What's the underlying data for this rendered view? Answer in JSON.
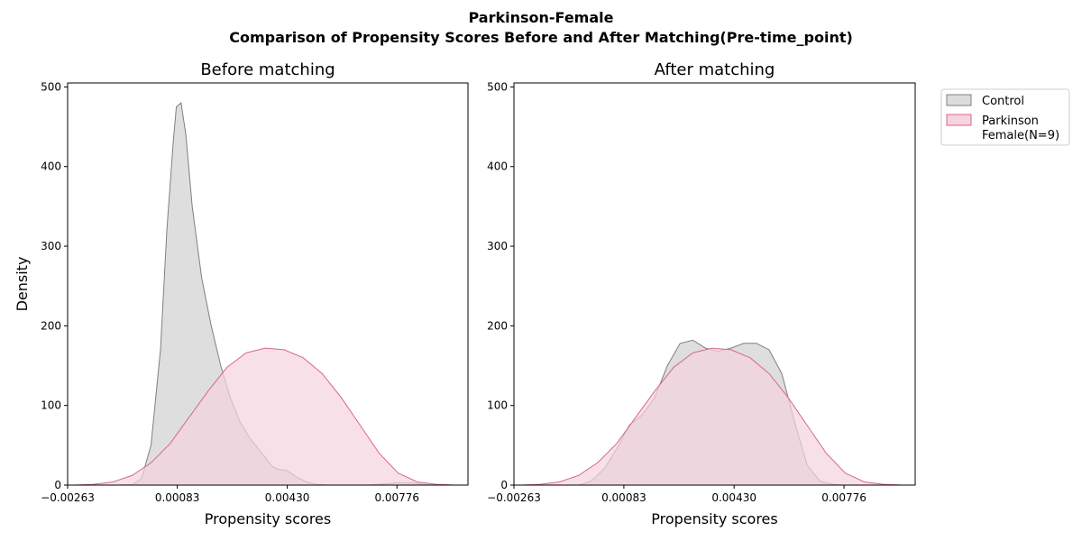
{
  "suptitle": {
    "line1": "Parkinson-Female",
    "line2": "Comparison of Propensity Scores Before and After Matching(Pre-time_point)"
  },
  "legend": {
    "items": [
      {
        "label_lines": [
          "Control"
        ],
        "fill": "#dcdcdc",
        "stroke": "#808080"
      },
      {
        "label_lines": [
          "Parkinson",
          "Female(N=9)"
        ],
        "fill": "#f5d3df",
        "stroke": "#d9668f"
      }
    ],
    "placement": "outside-right"
  },
  "chart_data": [
    {
      "type": "area",
      "title": "Before matching",
      "xlabel": "Propensity scores",
      "ylabel": "Density",
      "xlim": [
        -0.00263,
        0.01
      ],
      "ylim": [
        0,
        505
      ],
      "xticks": [
        -0.00263,
        0.00083,
        0.0043,
        0.00776
      ],
      "xtick_labels": [
        "−0.00263",
        "0.00083",
        "0.00430",
        "0.00776"
      ],
      "yticks": [
        0,
        100,
        200,
        300,
        400,
        500
      ],
      "grid": false,
      "series": [
        {
          "name": "Control",
          "color": "#808080",
          "fill": "#dcdcdc",
          "x": [
            -0.0024,
            -0.0012,
            -0.0006,
            -0.0003,
            0.0,
            0.0003,
            0.0005,
            0.0007,
            0.0008,
            0.00095,
            0.0011,
            0.0013,
            0.0016,
            0.0019,
            0.0022,
            0.0025,
            0.0028,
            0.0031,
            0.0034,
            0.0036,
            0.0038,
            0.004,
            0.0043,
            0.0046,
            0.0049,
            0.0052,
            0.0056,
            0.006,
            0.0064,
            0.0068,
            0.0072,
            0.0078,
            0.0082,
            0.0086,
            0.009,
            0.0095
          ],
          "y": [
            0,
            0,
            0.5,
            8,
            50,
            170,
            320,
            430,
            475,
            480,
            440,
            350,
            260,
            200,
            150,
            110,
            80,
            60,
            45,
            35,
            24,
            20,
            18,
            10,
            4,
            1,
            0,
            0,
            0,
            0,
            1,
            3,
            3,
            1,
            0,
            0
          ]
        },
        {
          "name": "Parkinson\nFemale(N=9)",
          "color": "#d9668f",
          "fill": "#f5d3df",
          "x": [
            -0.0024,
            -0.0018,
            -0.0012,
            -0.0006,
            0.0,
            0.0006,
            0.0012,
            0.0018,
            0.0024,
            0.003,
            0.0036,
            0.0042,
            0.0048,
            0.0054,
            0.006,
            0.0066,
            0.0072,
            0.0078,
            0.0084,
            0.009,
            0.0096
          ],
          "y": [
            0,
            1,
            4,
            12,
            28,
            52,
            85,
            118,
            148,
            166,
            172,
            170,
            160,
            140,
            110,
            75,
            40,
            15,
            4,
            1,
            0
          ]
        }
      ]
    },
    {
      "type": "area",
      "title": "After matching",
      "xlabel": "Propensity scores",
      "ylabel": "",
      "xlim": [
        -0.00263,
        0.01
      ],
      "ylim": [
        0,
        505
      ],
      "xticks": [
        -0.00263,
        0.00083,
        0.0043,
        0.00776
      ],
      "xtick_labels": [
        "−0.00263",
        "0.00083",
        "0.00430",
        "0.00776"
      ],
      "yticks": [
        0,
        100,
        200,
        300,
        400,
        500
      ],
      "grid": false,
      "series": [
        {
          "name": "Control",
          "color": "#808080",
          "fill": "#dcdcdc",
          "x": [
            -0.0024,
            -0.0006,
            -0.0002,
            0.0002,
            0.0006,
            0.001,
            0.0014,
            0.0018,
            0.0022,
            0.0026,
            0.003,
            0.0034,
            0.0038,
            0.0042,
            0.0046,
            0.005,
            0.0054,
            0.0058,
            0.0062,
            0.0066,
            0.007,
            0.0074,
            0.0078,
            0.0082,
            0.0086,
            0.009,
            0.0095
          ],
          "y": [
            0,
            0,
            5,
            20,
            45,
            75,
            88,
            110,
            150,
            178,
            182,
            172,
            168,
            172,
            178,
            178,
            170,
            140,
            80,
            25,
            5,
            1,
            0,
            0,
            0,
            0,
            0
          ]
        },
        {
          "name": "Parkinson\nFemale(N=9)",
          "color": "#d9668f",
          "fill": "#f5d3df",
          "x": [
            -0.0024,
            -0.0018,
            -0.0012,
            -0.0006,
            0.0,
            0.0006,
            0.0012,
            0.0018,
            0.0024,
            0.003,
            0.0036,
            0.0042,
            0.0048,
            0.0054,
            0.006,
            0.0066,
            0.0072,
            0.0078,
            0.0084,
            0.009,
            0.0096
          ],
          "y": [
            0,
            1,
            4,
            12,
            28,
            52,
            85,
            118,
            148,
            166,
            172,
            170,
            160,
            140,
            110,
            75,
            40,
            15,
            4,
            1,
            0
          ]
        }
      ]
    }
  ]
}
